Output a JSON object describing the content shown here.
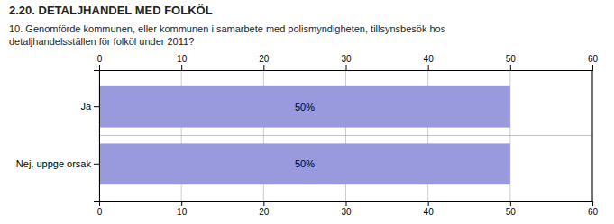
{
  "chart_data": {
    "type": "bar",
    "orientation": "horizontal",
    "title": "2.20. DETALJHANDEL MED FOLKÖL",
    "subtitle": "10. Genomförde kommunen, eller kommunen i samarbete med polismyndigheten, tillsynsbesök hos\ndetaljhandelsställen för folköl under 2011?",
    "categories": [
      "Ja",
      "Nej, uppge orsak"
    ],
    "values": [
      50,
      50
    ],
    "value_labels": [
      "50%",
      "50%"
    ],
    "data_labels": true,
    "color": "#9999dd",
    "xlim": [
      0,
      60
    ],
    "xticks": [
      0,
      10,
      20,
      30,
      40,
      50,
      60
    ],
    "grid": true
  }
}
